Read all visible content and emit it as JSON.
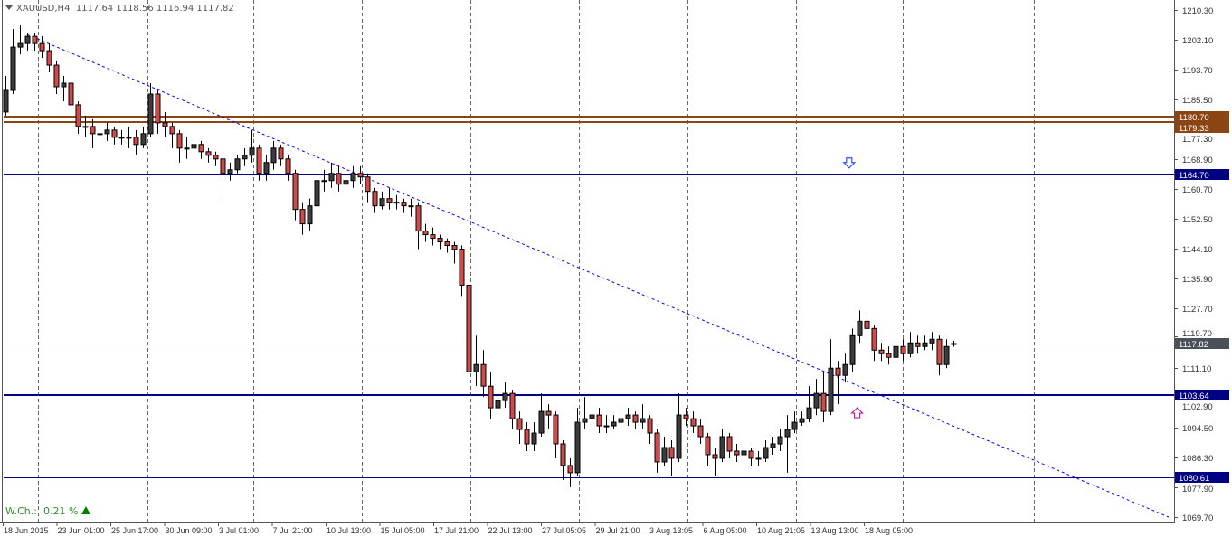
{
  "header": {
    "symbol": "XAUUSD,H4",
    "ohlc": "1117.64 1118.56 1116.94 1117.82"
  },
  "weekly_change": {
    "label": "W.Ch.:",
    "value": "0.21 %",
    "direction": "up",
    "color": "#2f8f2f"
  },
  "chart_data": {
    "type": "candlestick",
    "ylim": [
      1069.7,
      1210.3
    ],
    "y_ticks": [
      "1210.30",
      "1202.10",
      "1193.70",
      "1185.50",
      "1177.30",
      "1168.90",
      "1160.70",
      "1152.50",
      "1144.10",
      "1135.90",
      "1127.70",
      "1119.70",
      "1111.10",
      "1102.90",
      "1094.50",
      "1086.30",
      "1077.90",
      "1069.70"
    ],
    "x_ticks": [
      "18 Jun 2015",
      "23 Jun 01:00",
      "25 Jun 17:00",
      "30 Jun 09:00",
      "3 Jul 01:00",
      "7 Jul 21:00",
      "10 Jul 13:00",
      "15 Jul 05:00",
      "17 Jul 21:00",
      "22 Jul 13:00",
      "27 Jul 05:05",
      "29 Jul 21:00",
      "3 Aug 13:05",
      "6 Aug 05:00",
      "10 Aug 21:05",
      "13 Aug 13:00",
      "18 Aug 05:00"
    ],
    "grid": "vertical-dashed",
    "colors": {
      "bull": "#3c3c3c",
      "bear": "#d04a4a",
      "outline": "#000000"
    },
    "candles_ohlc": [
      [
        1182,
        1192,
        1181,
        1188
      ],
      [
        1188,
        1205,
        1187,
        1200
      ],
      [
        1200,
        1206,
        1198,
        1201
      ],
      [
        1201,
        1204,
        1199,
        1203
      ],
      [
        1203,
        1204,
        1199,
        1201
      ],
      [
        1201,
        1203,
        1197,
        1199
      ],
      [
        1199,
        1201,
        1193,
        1195
      ],
      [
        1195,
        1196,
        1187,
        1189
      ],
      [
        1189,
        1192,
        1185,
        1190
      ],
      [
        1190,
        1191,
        1182,
        1184
      ],
      [
        1184,
        1185,
        1176,
        1178
      ],
      [
        1178,
        1181,
        1175,
        1178
      ],
      [
        1178,
        1180,
        1172,
        1176
      ],
      [
        1176,
        1178,
        1173,
        1176
      ],
      [
        1176,
        1179,
        1174,
        1177
      ],
      [
        1177,
        1178,
        1173,
        1175
      ],
      [
        1175,
        1177,
        1173,
        1175
      ],
      [
        1175,
        1178,
        1172,
        1175
      ],
      [
        1175,
        1177,
        1170,
        1173
      ],
      [
        1173,
        1178,
        1172,
        1176
      ],
      [
        1176,
        1190,
        1175,
        1187
      ],
      [
        1187,
        1188,
        1176,
        1179
      ],
      [
        1179,
        1182,
        1175,
        1178
      ],
      [
        1178,
        1179,
        1172,
        1176
      ],
      [
        1176,
        1177,
        1168,
        1172
      ],
      [
        1172,
        1175,
        1169,
        1172
      ],
      [
        1172,
        1175,
        1170,
        1173
      ],
      [
        1173,
        1174,
        1169,
        1171
      ],
      [
        1171,
        1172,
        1168,
        1170
      ],
      [
        1170,
        1171,
        1167,
        1169
      ],
      [
        1169,
        1170,
        1158,
        1165
      ],
      [
        1165,
        1168,
        1163,
        1166
      ],
      [
        1166,
        1170,
        1165,
        1169
      ],
      [
        1169,
        1172,
        1167,
        1170
      ],
      [
        1170,
        1177,
        1168,
        1172
      ],
      [
        1172,
        1173,
        1163,
        1165
      ],
      [
        1165,
        1170,
        1163,
        1168
      ],
      [
        1168,
        1174,
        1166,
        1172
      ],
      [
        1172,
        1173,
        1167,
        1169
      ],
      [
        1169,
        1170,
        1163,
        1165
      ],
      [
        1165,
        1166,
        1152,
        1155
      ],
      [
        1155,
        1157,
        1148,
        1151
      ],
      [
        1151,
        1158,
        1149,
        1156
      ],
      [
        1156,
        1165,
        1155,
        1163
      ],
      [
        1163,
        1166,
        1160,
        1163
      ],
      [
        1163,
        1168,
        1161,
        1165
      ],
      [
        1165,
        1167,
        1160,
        1162
      ],
      [
        1162,
        1166,
        1160,
        1163
      ],
      [
        1163,
        1167,
        1161,
        1165
      ],
      [
        1165,
        1167,
        1162,
        1164
      ],
      [
        1164,
        1165,
        1157,
        1160
      ],
      [
        1160,
        1161,
        1154,
        1156
      ],
      [
        1156,
        1160,
        1155,
        1158
      ],
      [
        1158,
        1161,
        1155,
        1157
      ],
      [
        1157,
        1159,
        1155,
        1157
      ],
      [
        1157,
        1158,
        1154,
        1156
      ],
      [
        1156,
        1158,
        1153,
        1156
      ],
      [
        1156,
        1157,
        1144,
        1149
      ],
      [
        1149,
        1151,
        1146,
        1148
      ],
      [
        1148,
        1150,
        1145,
        1147
      ],
      [
        1147,
        1148,
        1144,
        1146
      ],
      [
        1146,
        1147,
        1143,
        1145
      ],
      [
        1145,
        1146,
        1140,
        1144
      ],
      [
        1144,
        1145,
        1131,
        1134
      ],
      [
        1134,
        1135,
        1072,
        1110
      ],
      [
        1110,
        1120,
        1106,
        1112
      ],
      [
        1112,
        1116,
        1103,
        1106
      ],
      [
        1106,
        1110,
        1097,
        1100
      ],
      [
        1100,
        1106,
        1098,
        1102
      ],
      [
        1102,
        1107,
        1100,
        1104
      ],
      [
        1104,
        1105,
        1094,
        1097
      ],
      [
        1097,
        1099,
        1090,
        1094
      ],
      [
        1094,
        1096,
        1088,
        1090
      ],
      [
        1090,
        1096,
        1088,
        1093
      ],
      [
        1093,
        1104,
        1092,
        1099
      ],
      [
        1099,
        1101,
        1094,
        1098
      ],
      [
        1098,
        1099,
        1086,
        1090
      ],
      [
        1090,
        1091,
        1080,
        1084
      ],
      [
        1084,
        1086,
        1078,
        1082
      ],
      [
        1082,
        1100,
        1081,
        1096
      ],
      [
        1096,
        1103,
        1094,
        1097
      ],
      [
        1097,
        1104,
        1095,
        1098
      ],
      [
        1098,
        1100,
        1093,
        1095
      ],
      [
        1095,
        1098,
        1093,
        1095
      ],
      [
        1095,
        1098,
        1094,
        1096
      ],
      [
        1096,
        1099,
        1095,
        1097
      ],
      [
        1097,
        1100,
        1095,
        1098
      ],
      [
        1098,
        1099,
        1094,
        1096
      ],
      [
        1096,
        1101,
        1094,
        1097
      ],
      [
        1097,
        1098,
        1090,
        1093
      ],
      [
        1093,
        1094,
        1082,
        1085
      ],
      [
        1085,
        1092,
        1084,
        1089
      ],
      [
        1089,
        1091,
        1081,
        1086
      ],
      [
        1086,
        1104,
        1085,
        1098
      ],
      [
        1098,
        1100,
        1095,
        1097
      ],
      [
        1097,
        1099,
        1093,
        1095
      ],
      [
        1095,
        1097,
        1090,
        1092
      ],
      [
        1092,
        1093,
        1084,
        1087
      ],
      [
        1087,
        1089,
        1081,
        1086
      ],
      [
        1086,
        1094,
        1085,
        1092
      ],
      [
        1092,
        1093,
        1086,
        1088
      ],
      [
        1088,
        1090,
        1085,
        1087
      ],
      [
        1087,
        1090,
        1085,
        1088
      ],
      [
        1088,
        1089,
        1084,
        1086
      ],
      [
        1086,
        1088,
        1084,
        1086
      ],
      [
        1086,
        1091,
        1085,
        1089
      ],
      [
        1089,
        1092,
        1087,
        1090
      ],
      [
        1090,
        1094,
        1088,
        1092
      ],
      [
        1092,
        1098,
        1082,
        1094
      ],
      [
        1094,
        1099,
        1093,
        1096
      ],
      [
        1096,
        1099,
        1095,
        1097
      ],
      [
        1097,
        1106,
        1096,
        1100
      ],
      [
        1100,
        1108,
        1098,
        1104
      ],
      [
        1104,
        1110,
        1096,
        1099
      ],
      [
        1099,
        1119,
        1098,
        1111
      ],
      [
        1111,
        1113,
        1101,
        1109
      ],
      [
        1109,
        1115,
        1107,
        1112
      ],
      [
        1112,
        1122,
        1110,
        1120
      ],
      [
        1120,
        1127,
        1118,
        1124
      ],
      [
        1124,
        1126,
        1119,
        1122
      ],
      [
        1122,
        1123,
        1113,
        1116
      ],
      [
        1116,
        1118,
        1113,
        1115
      ],
      [
        1115,
        1117,
        1112,
        1114
      ],
      [
        1114,
        1120,
        1113,
        1117
      ],
      [
        1117,
        1119,
        1113,
        1115
      ],
      [
        1115,
        1121,
        1114,
        1118
      ],
      [
        1118,
        1120,
        1115,
        1117
      ],
      [
        1117,
        1120,
        1116,
        1118
      ],
      [
        1118,
        1121,
        1116,
        1119
      ],
      [
        1119,
        1120,
        1109,
        1112
      ],
      [
        1112,
        1119,
        1111,
        1117
      ],
      [
        1117.64,
        1118.56,
        1116.94,
        1117.82
      ]
    ],
    "horizontal_lines": [
      {
        "price": "1180.70",
        "color": "#8b4513",
        "width": 2
      },
      {
        "price": "1179.33",
        "color": "#8b4513",
        "width": 2
      },
      {
        "price": "1164.70",
        "color": "#000080",
        "width": 2
      },
      {
        "price": "1117.82",
        "color": "#000000",
        "width": 1,
        "label_bg": "#4a5058"
      },
      {
        "price": "1103.64",
        "color": "#000080",
        "width": 2
      },
      {
        "price": "1080.61",
        "color": "#000080",
        "width": 1
      }
    ],
    "trendline": {
      "color": "#0000ff",
      "style": "dotted",
      "from": {
        "bar": 3,
        "price": 1203.5
      },
      "to": {
        "bar": 160.75,
        "price": 1069.7
      }
    },
    "arrows": [
      {
        "type": "down-arrow-icon",
        "bar": 116.6,
        "price": 1168.0,
        "color": "#3050ff"
      },
      {
        "type": "up-arrow-icon",
        "bar": 117.7,
        "price": 1098.5,
        "color": "#c020a0"
      }
    ]
  }
}
